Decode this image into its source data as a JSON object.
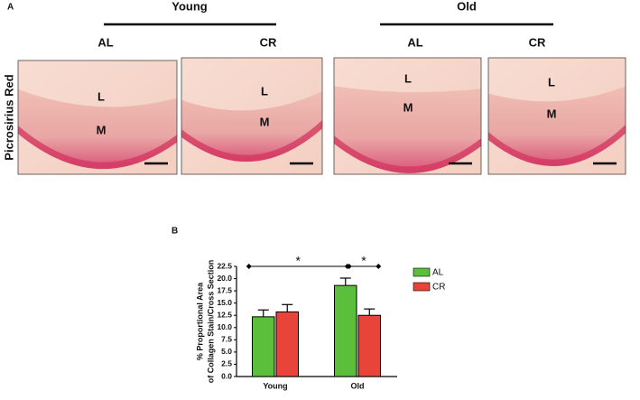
{
  "panel_a": {
    "label": "A",
    "stain": "Picrosirius Red",
    "groups": [
      "Young",
      "Old"
    ],
    "images": [
      {
        "column": "AL",
        "labels": [
          "L",
          "M"
        ]
      },
      {
        "column": "CR",
        "labels": [
          "L",
          "M"
        ]
      },
      {
        "column": "AL",
        "labels": [
          "L",
          "M"
        ]
      },
      {
        "column": "CR",
        "labels": [
          "L",
          "M"
        ]
      }
    ]
  },
  "chart_data": {
    "type": "bar",
    "panel_label": "B",
    "ylabel": [
      "% Proportional Area",
      "of Collagen Stain/Cross Section"
    ],
    "categories": [
      "Young",
      "Old"
    ],
    "series": [
      {
        "name": "AL",
        "color": "#5cbf3c",
        "values": [
          12.2,
          18.6
        ],
        "errors": [
          1.4,
          1.5
        ]
      },
      {
        "name": "CR",
        "color": "#e8443a",
        "values": [
          13.2,
          12.5
        ],
        "errors": [
          1.5,
          1.3
        ]
      }
    ],
    "ylim": [
      0,
      22.5
    ],
    "yticks": [
      {
        "value": 0,
        "label": "0.0"
      },
      2.5,
      {
        "value": 5,
        "label": "5.0"
      },
      7.5,
      {
        "value": 10,
        "label": "10.0"
      },
      12.5,
      {
        "value": 15,
        "label": "15.0"
      },
      17.5,
      {
        "value": 20,
        "label": "20.0"
      },
      22.5
    ],
    "significance": [
      "*",
      "*"
    ]
  }
}
